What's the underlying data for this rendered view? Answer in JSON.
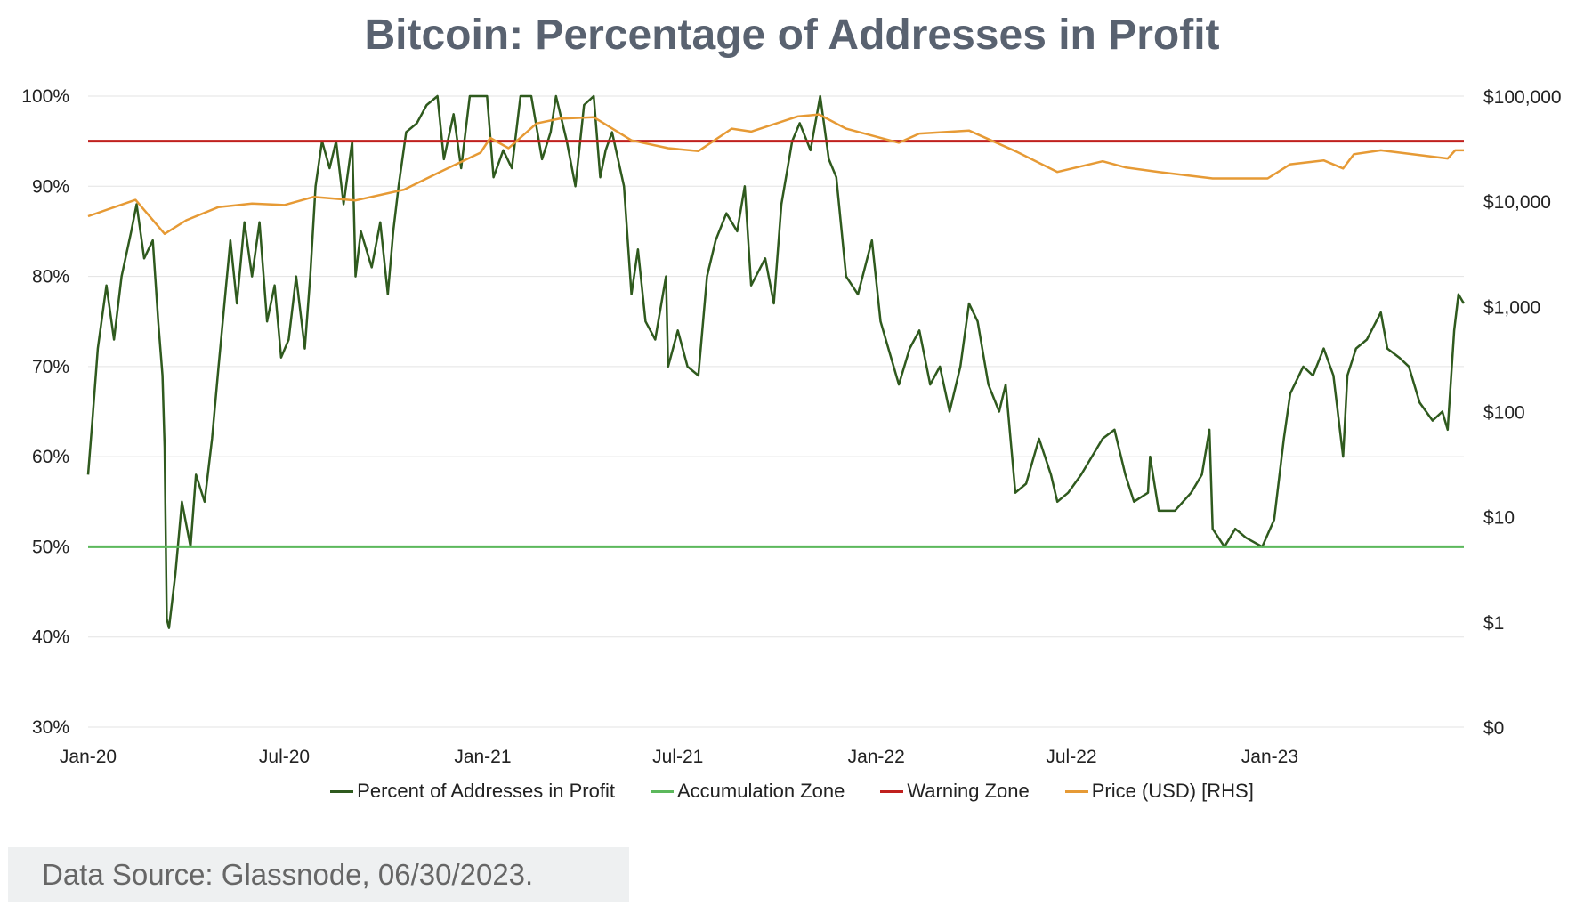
{
  "chart_data": {
    "type": "line",
    "title": "Bitcoin: Percentage of Addresses in Profit",
    "left_axis": {
      "ticks": [
        "30%",
        "40%",
        "50%",
        "60%",
        "70%",
        "80%",
        "90%",
        "100%"
      ],
      "range": [
        30,
        100
      ]
    },
    "right_axis": {
      "ticks": [
        "$0",
        "$1",
        "$10",
        "$100",
        "$1,000",
        "$10,000",
        "$100,000"
      ],
      "scale": "log",
      "range_log10": [
        -1,
        5
      ]
    },
    "x_axis": {
      "ticks": [
        "Jan-20",
        "Jul-20",
        "Jan-21",
        "Jul-21",
        "Jan-22",
        "Jul-22",
        "Jan-23"
      ],
      "tick_dates": [
        "2020-01-01",
        "2020-07-01",
        "2021-01-01",
        "2021-07-01",
        "2022-01-01",
        "2022-07-01",
        "2023-01-01"
      ],
      "range": [
        "2020-01-01",
        "2023-06-30"
      ]
    },
    "grid": true,
    "legend_placement": "bottom",
    "series": [
      {
        "name": "Percent of Addresses in Profit",
        "color": "#2f5a1e",
        "axis": "left",
        "points": [
          [
            "2020-01-01",
            58
          ],
          [
            "2020-01-05",
            64
          ],
          [
            "2020-01-10",
            72
          ],
          [
            "2020-01-18",
            79
          ],
          [
            "2020-01-25",
            73
          ],
          [
            "2020-02-01",
            80
          ],
          [
            "2020-02-10",
            85
          ],
          [
            "2020-02-15",
            88
          ],
          [
            "2020-02-22",
            82
          ],
          [
            "2020-03-01",
            84
          ],
          [
            "2020-03-06",
            75
          ],
          [
            "2020-03-10",
            69
          ],
          [
            "2020-03-12",
            61
          ],
          [
            "2020-03-14",
            42
          ],
          [
            "2020-03-16",
            41
          ],
          [
            "2020-03-22",
            47
          ],
          [
            "2020-03-28",
            55
          ],
          [
            "2020-04-05",
            50
          ],
          [
            "2020-04-10",
            58
          ],
          [
            "2020-04-18",
            55
          ],
          [
            "2020-04-25",
            62
          ],
          [
            "2020-05-01",
            70
          ],
          [
            "2020-05-08",
            79
          ],
          [
            "2020-05-12",
            84
          ],
          [
            "2020-05-18",
            77
          ],
          [
            "2020-05-25",
            86
          ],
          [
            "2020-06-01",
            80
          ],
          [
            "2020-06-08",
            86
          ],
          [
            "2020-06-15",
            75
          ],
          [
            "2020-06-22",
            79
          ],
          [
            "2020-06-28",
            71
          ],
          [
            "2020-07-05",
            73
          ],
          [
            "2020-07-12",
            80
          ],
          [
            "2020-07-20",
            72
          ],
          [
            "2020-07-25",
            80
          ],
          [
            "2020-07-30",
            90
          ],
          [
            "2020-08-05",
            95
          ],
          [
            "2020-08-12",
            92
          ],
          [
            "2020-08-18",
            95
          ],
          [
            "2020-08-25",
            88
          ],
          [
            "2020-09-02",
            95
          ],
          [
            "2020-09-05",
            80
          ],
          [
            "2020-09-10",
            85
          ],
          [
            "2020-09-20",
            81
          ],
          [
            "2020-09-28",
            86
          ],
          [
            "2020-10-05",
            78
          ],
          [
            "2020-10-10",
            85
          ],
          [
            "2020-10-15",
            90
          ],
          [
            "2020-10-22",
            96
          ],
          [
            "2020-11-01",
            97
          ],
          [
            "2020-11-10",
            99
          ],
          [
            "2020-11-20",
            100
          ],
          [
            "2020-11-26",
            93
          ],
          [
            "2020-12-05",
            98
          ],
          [
            "2020-12-12",
            92
          ],
          [
            "2020-12-20",
            100
          ],
          [
            "2021-01-05",
            100
          ],
          [
            "2021-01-11",
            91
          ],
          [
            "2021-01-20",
            94
          ],
          [
            "2021-01-28",
            92
          ],
          [
            "2021-02-05",
            100
          ],
          [
            "2021-02-15",
            100
          ],
          [
            "2021-02-25",
            93
          ],
          [
            "2021-03-05",
            96
          ],
          [
            "2021-03-10",
            100
          ],
          [
            "2021-03-20",
            95
          ],
          [
            "2021-03-28",
            90
          ],
          [
            "2021-04-05",
            99
          ],
          [
            "2021-04-14",
            100
          ],
          [
            "2021-04-20",
            91
          ],
          [
            "2021-04-25",
            94
          ],
          [
            "2021-05-01",
            96
          ],
          [
            "2021-05-12",
            90
          ],
          [
            "2021-05-19",
            78
          ],
          [
            "2021-05-25",
            83
          ],
          [
            "2021-06-01",
            75
          ],
          [
            "2021-06-10",
            73
          ],
          [
            "2021-06-20",
            80
          ],
          [
            "2021-06-22",
            70
          ],
          [
            "2021-07-01",
            74
          ],
          [
            "2021-07-10",
            70
          ],
          [
            "2021-07-20",
            69
          ],
          [
            "2021-07-28",
            80
          ],
          [
            "2021-08-05",
            84
          ],
          [
            "2021-08-15",
            87
          ],
          [
            "2021-08-25",
            85
          ],
          [
            "2021-09-01",
            90
          ],
          [
            "2021-09-07",
            79
          ],
          [
            "2021-09-20",
            82
          ],
          [
            "2021-09-28",
            77
          ],
          [
            "2021-10-05",
            88
          ],
          [
            "2021-10-15",
            95
          ],
          [
            "2021-10-22",
            97
          ],
          [
            "2021-11-01",
            94
          ],
          [
            "2021-11-10",
            100
          ],
          [
            "2021-11-18",
            93
          ],
          [
            "2021-11-25",
            91
          ],
          [
            "2021-12-04",
            80
          ],
          [
            "2021-12-15",
            78
          ],
          [
            "2021-12-28",
            84
          ],
          [
            "2022-01-05",
            75
          ],
          [
            "2022-01-22",
            68
          ],
          [
            "2022-02-01",
            72
          ],
          [
            "2022-02-10",
            74
          ],
          [
            "2022-02-20",
            68
          ],
          [
            "2022-03-01",
            70
          ],
          [
            "2022-03-10",
            65
          ],
          [
            "2022-03-20",
            70
          ],
          [
            "2022-03-28",
            77
          ],
          [
            "2022-04-05",
            75
          ],
          [
            "2022-04-15",
            68
          ],
          [
            "2022-04-25",
            65
          ],
          [
            "2022-05-01",
            68
          ],
          [
            "2022-05-10",
            56
          ],
          [
            "2022-05-20",
            57
          ],
          [
            "2022-06-01",
            62
          ],
          [
            "2022-06-12",
            58
          ],
          [
            "2022-06-18",
            55
          ],
          [
            "2022-06-28",
            56
          ],
          [
            "2022-07-10",
            58
          ],
          [
            "2022-07-20",
            60
          ],
          [
            "2022-07-30",
            62
          ],
          [
            "2022-08-10",
            63
          ],
          [
            "2022-08-20",
            58
          ],
          [
            "2022-08-28",
            55
          ],
          [
            "2022-09-10",
            56
          ],
          [
            "2022-09-12",
            60
          ],
          [
            "2022-09-20",
            54
          ],
          [
            "2022-10-05",
            54
          ],
          [
            "2022-10-20",
            56
          ],
          [
            "2022-10-30",
            58
          ],
          [
            "2022-11-06",
            63
          ],
          [
            "2022-11-09",
            52
          ],
          [
            "2022-11-20",
            50
          ],
          [
            "2022-11-30",
            52
          ],
          [
            "2022-12-10",
            51
          ],
          [
            "2022-12-25",
            50
          ],
          [
            "2023-01-05",
            53
          ],
          [
            "2023-01-14",
            62
          ],
          [
            "2023-01-20",
            67
          ],
          [
            "2023-02-01",
            70
          ],
          [
            "2023-02-10",
            69
          ],
          [
            "2023-02-20",
            72
          ],
          [
            "2023-03-01",
            69
          ],
          [
            "2023-03-10",
            60
          ],
          [
            "2023-03-14",
            69
          ],
          [
            "2023-03-22",
            72
          ],
          [
            "2023-04-01",
            73
          ],
          [
            "2023-04-14",
            76
          ],
          [
            "2023-04-20",
            72
          ],
          [
            "2023-05-01",
            71
          ],
          [
            "2023-05-10",
            70
          ],
          [
            "2023-05-20",
            66
          ],
          [
            "2023-06-01",
            64
          ],
          [
            "2023-06-10",
            65
          ],
          [
            "2023-06-15",
            63
          ],
          [
            "2023-06-21",
            74
          ],
          [
            "2023-06-25",
            78
          ],
          [
            "2023-06-30",
            77
          ]
        ]
      },
      {
        "name": "Accumulation Zone",
        "color": "#5cb85c",
        "axis": "left",
        "constant": 50
      },
      {
        "name": "Warning Zone",
        "color": "#c0201e",
        "axis": "left",
        "constant": 95
      },
      {
        "name": "Price (USD) [RHS]",
        "color": "#e69a35",
        "axis": "right",
        "points": [
          [
            "2020-01-01",
            7200
          ],
          [
            "2020-02-14",
            10300
          ],
          [
            "2020-03-12",
            4900
          ],
          [
            "2020-04-01",
            6600
          ],
          [
            "2020-05-01",
            8800
          ],
          [
            "2020-06-01",
            9500
          ],
          [
            "2020-07-01",
            9200
          ],
          [
            "2020-07-28",
            11000
          ],
          [
            "2020-09-05",
            10200
          ],
          [
            "2020-10-20",
            12900
          ],
          [
            "2020-11-20",
            18500
          ],
          [
            "2020-12-30",
            29000
          ],
          [
            "2021-01-08",
            40000
          ],
          [
            "2021-01-25",
            32000
          ],
          [
            "2021-02-20",
            55000
          ],
          [
            "2021-03-13",
            61000
          ],
          [
            "2021-04-14",
            63000
          ],
          [
            "2021-05-19",
            38000
          ],
          [
            "2021-06-22",
            32000
          ],
          [
            "2021-07-20",
            30000
          ],
          [
            "2021-08-20",
            49000
          ],
          [
            "2021-09-07",
            46000
          ],
          [
            "2021-10-20",
            64000
          ],
          [
            "2021-11-09",
            67000
          ],
          [
            "2021-12-04",
            49000
          ],
          [
            "2022-01-22",
            36000
          ],
          [
            "2022-02-10",
            44000
          ],
          [
            "2022-03-28",
            47000
          ],
          [
            "2022-05-10",
            30000
          ],
          [
            "2022-06-18",
            19000
          ],
          [
            "2022-07-30",
            24000
          ],
          [
            "2022-08-20",
            21000
          ],
          [
            "2022-09-20",
            19000
          ],
          [
            "2022-11-09",
            16500
          ],
          [
            "2022-12-30",
            16500
          ],
          [
            "2023-01-20",
            22500
          ],
          [
            "2023-02-20",
            24500
          ],
          [
            "2023-03-10",
            20500
          ],
          [
            "2023-03-20",
            28000
          ],
          [
            "2023-04-14",
            30500
          ],
          [
            "2023-06-15",
            25500
          ],
          [
            "2023-06-22",
            30500
          ],
          [
            "2023-06-30",
            30500
          ]
        ]
      }
    ]
  },
  "source": "Data Source: Glassnode, 06/30/2023."
}
